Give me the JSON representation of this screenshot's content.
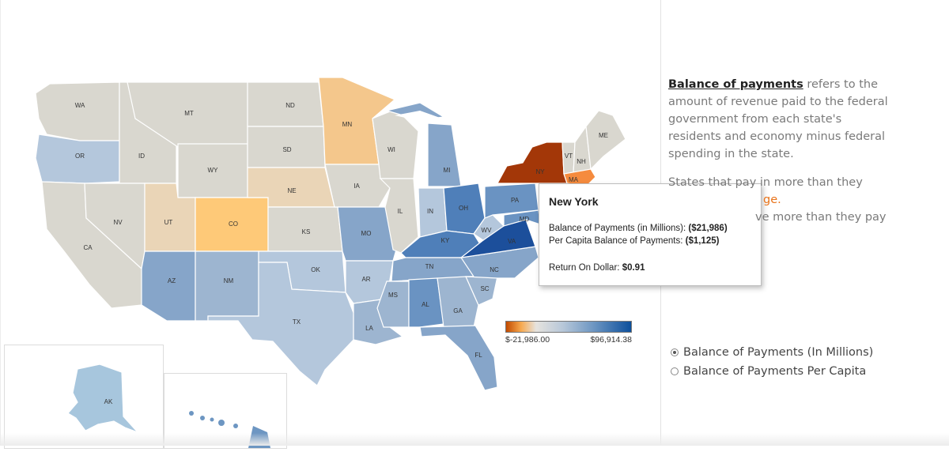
{
  "colors": {
    "gray": "#d9d7cf",
    "tan": "#ead5b7",
    "lightorange": "#f4c78c",
    "orange": "#fec978",
    "paleblue": "#b4c7dc",
    "blue1": "#9db5d0",
    "blue2": "#86a5c9",
    "blue3": "#6a93c2",
    "blue4": "#4f7fb9",
    "blue5": "#3e72b2",
    "blue6": "#1c4f9b",
    "ny": "#a33708",
    "ma": "#f58b3e",
    "alaska": "#a7c6dd"
  },
  "states": {
    "WA": "WA",
    "OR": "OR",
    "CA": "CA",
    "ID": "ID",
    "NV": "NV",
    "MT": "MT",
    "WY": "WY",
    "UT": "UT",
    "AZ": "AZ",
    "CO": "CO",
    "NM": "NM",
    "ND": "ND",
    "SD": "SD",
    "NE": "NE",
    "KS": "KS",
    "OK": "OK",
    "TX": "TX",
    "MN": "MN",
    "IA": "IA",
    "MO": "MO",
    "AR": "AR",
    "LA": "LA",
    "WI": "WI",
    "IL": "IL",
    "MI": "MI",
    "IN": "IN",
    "OH": "OH",
    "KY": "KY",
    "TN": "TN",
    "MS": "MS",
    "AL": "AL",
    "GA": "GA",
    "FL": "FL",
    "SC": "SC",
    "NC": "NC",
    "VA": "VA",
    "WV": "WV",
    "PA": "PA",
    "NY": "NY",
    "VT": "VT",
    "NH": "NH",
    "ME": "ME",
    "MA": "MA",
    "MD": "MD",
    "AK": "AK"
  },
  "tooltip": {
    "state": "New York",
    "bop_label": "Balance of Payments (in Millions):",
    "bop_value": "($21,986)",
    "per_capita_label": "Per Capita Balance of Payments:",
    "per_capita_value": "($1,125)",
    "rod_label": "Return On Dollar:",
    "rod_value": "$0.91"
  },
  "legend": {
    "min_label": "$-21,986.00",
    "max_label": "$96,914.38",
    "min": -21986.0,
    "max": 96914.38
  },
  "description": {
    "term": "Balance of payments",
    "definition": "refers to the amount of revenue paid to the federal government from each state's residents and economy minus federal spending in the state.",
    "line2_start": "States that pay in more than they",
    "line2_orange": "ge.",
    "line3": "ve more than they pay"
  },
  "options": {
    "opt1": "Balance of Payments (In Millions)",
    "opt2": "Balance of Payments Per Capita",
    "selected": "opt1"
  }
}
